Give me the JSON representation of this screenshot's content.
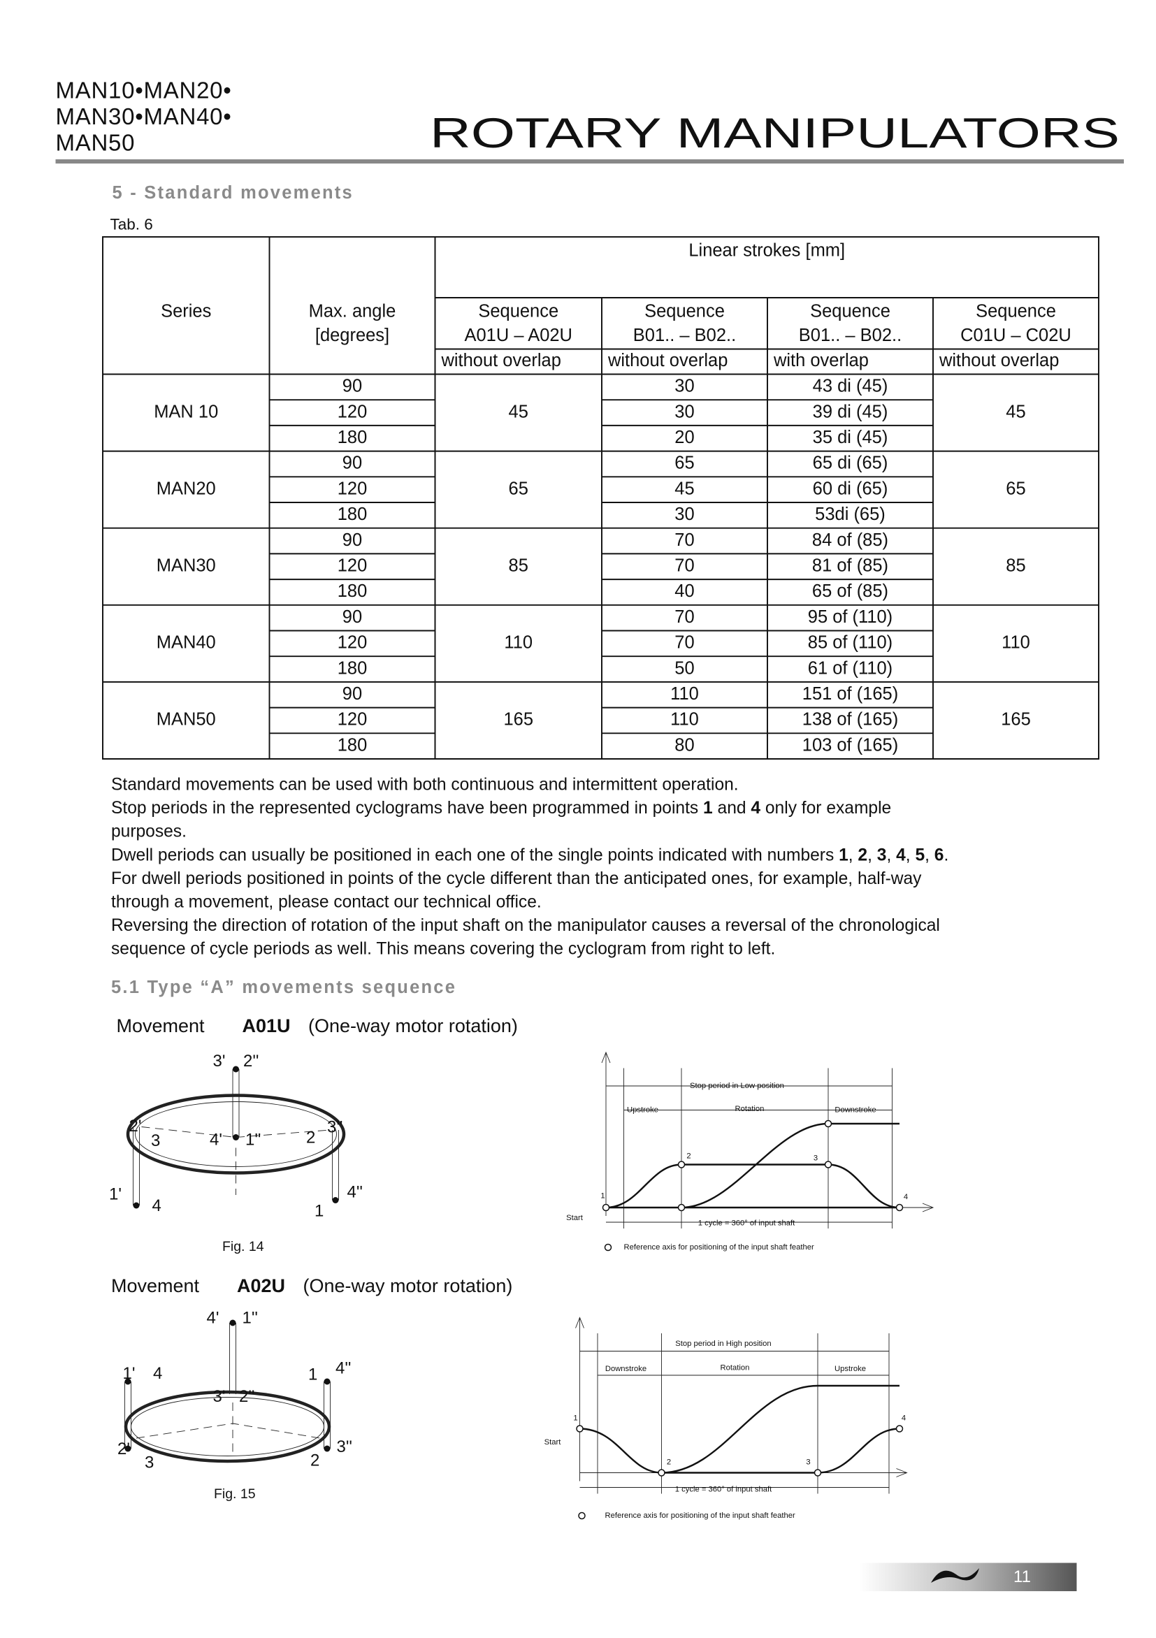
{
  "header": {
    "models": [
      "MAN10•MAN20•",
      "MAN30•MAN40•",
      "MAN50"
    ],
    "title": "ROTARY MANIPULATORS"
  },
  "section": {
    "heading": "5 - Standard movements",
    "caption": "Tab. 6"
  },
  "table": {
    "group_header": "Linear strokes [mm]",
    "series_header": "Series",
    "angle_header": [
      "Max. angle",
      "[degrees]"
    ],
    "sequence_headers": [
      [
        "Sequence",
        "A01U – A02U",
        "without overlap"
      ],
      [
        "Sequence",
        "B01.. – B02..",
        "without overlap"
      ],
      [
        "Sequence",
        "B01.. – B02..",
        "with overlap"
      ],
      [
        "Sequence",
        "C01U – C02U",
        "without overlap"
      ]
    ],
    "groups": [
      {
        "series": "MAN 10",
        "a": 45,
        "c": 45,
        "rows": [
          [
            90,
            30,
            "43 di (45)"
          ],
          [
            120,
            30,
            "39 di (45)"
          ],
          [
            180,
            20,
            "35 di (45)"
          ]
        ]
      },
      {
        "series": "MAN20",
        "a": 65,
        "c": 65,
        "rows": [
          [
            90,
            65,
            "65 di (65)"
          ],
          [
            120,
            45,
            "60 di (65)"
          ],
          [
            180,
            30,
            "53di (65)"
          ]
        ]
      },
      {
        "series": "MAN30",
        "a": 85,
        "c": 85,
        "rows": [
          [
            90,
            70,
            "84 of (85)"
          ],
          [
            120,
            70,
            "81 of (85)"
          ],
          [
            180,
            40,
            "65 of (85)"
          ]
        ]
      },
      {
        "series": "MAN40",
        "a": 110,
        "c": 110,
        "rows": [
          [
            90,
            70,
            "95 of (110)"
          ],
          [
            120,
            70,
            "85 of (110)"
          ],
          [
            180,
            50,
            "61 of (110)"
          ]
        ]
      },
      {
        "series": "MAN50",
        "a": 165,
        "c": 165,
        "rows": [
          [
            90,
            110,
            "151 of (165)"
          ],
          [
            120,
            110,
            "138 of (165)"
          ],
          [
            180,
            80,
            "103 of (165)"
          ]
        ]
      }
    ]
  },
  "paragraph_lines": [
    [
      "Standard movements can be used with both continuous and intermittent operation."
    ],
    [
      "Stop periods in the represented cyclograms have been programmed in points ",
      "1",
      " and ",
      "4",
      " only for example"
    ],
    [
      "purposes."
    ],
    [
      "Dwell periods can usually be positioned in each one of the single points indicated with numbers ",
      "1",
      ", ",
      "2",
      ", ",
      "3",
      ", ",
      "4",
      ", ",
      "5",
      ", ",
      "6",
      "."
    ],
    [
      "For dwell periods positioned in points of the cycle different than the anticipated ones, for example, half-way"
    ],
    [
      "through a movement, please contact our technical office."
    ],
    [
      "Reversing the direction of rotation of the input shaft on the manipulator causes a reversal of the chronological"
    ],
    [
      "sequence of cycle periods as well. This means covering the cyclogram from right to left."
    ]
  ],
  "subsection": {
    "heading": "5.1  Type “A” movements sequence"
  },
  "figures": [
    {
      "movement": "Movement",
      "code": "A01U",
      "note": "(One-way motor rotation)",
      "caption": "Fig. 14",
      "labels": [
        "3'",
        "2''",
        "2'",
        "3",
        "4'",
        "1''",
        "2",
        "3''",
        "1'",
        "4",
        "1",
        "4''"
      ],
      "cyclogram": {
        "stop": "Stop period in Low position",
        "phases": [
          "Upstroke",
          "Rotation",
          "Downstroke"
        ],
        "points": [
          "1",
          "2",
          "3",
          "4"
        ],
        "start": "Start",
        "cycle": "1 cycle = 360° of input shaft",
        "reference": "Reference axis for positioning of the input shaft feather"
      }
    },
    {
      "movement": "Movement",
      "code": "A02U",
      "note": "(One-way motor rotation)",
      "caption": "Fig. 15",
      "labels": [
        "4'",
        "1''",
        "1'",
        "4",
        "1",
        "4''",
        "3'",
        "2''",
        "2'",
        "3",
        "3''",
        "2"
      ],
      "cyclogram": {
        "stop": "Stop period in High position",
        "phases": [
          "Downstroke",
          "Rotation",
          "Upstroke"
        ],
        "points": [
          "1",
          "2",
          "3",
          "4"
        ],
        "start": "Start",
        "cycle": "1 cycle = 360° of input shaft",
        "reference": "Reference axis for positioning of the input shaft feather"
      }
    }
  ],
  "footer": {
    "page": "11"
  }
}
